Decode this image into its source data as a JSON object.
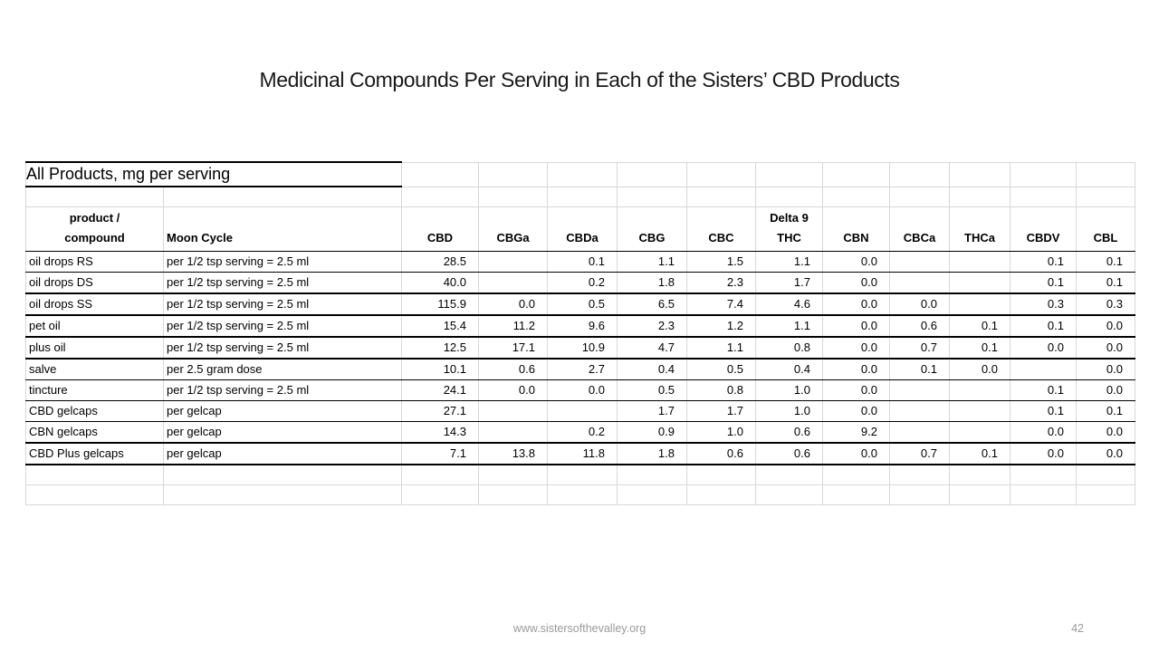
{
  "slide_title": "Medicinal Compounds Per Serving in Each of the Sisters’ CBD Products",
  "footer": {
    "website": "www.sistersofthevalley.org",
    "page_number": "42"
  },
  "chart_data": {
    "type": "table",
    "caption": "All Products, mg per serving",
    "columns": [
      "product /\ncompound",
      "Moon Cycle",
      "CBD",
      "CBGa",
      "CBDa",
      "CBG",
      "CBC",
      "Delta 9\nTHC",
      "CBN",
      "CBCa",
      "THCa",
      "CBDV",
      "CBL"
    ],
    "rows": [
      {
        "product": "oil drops RS",
        "moon_cycle": "per 1/2 tsp serving = 2.5 ml",
        "values": [
          "28.5",
          "",
          "0.1",
          "1.1",
          "1.5",
          "1.1",
          "0.0",
          "",
          "",
          "0.1",
          "0.1"
        ],
        "bottom_border": "thin"
      },
      {
        "product": "oil drops DS",
        "moon_cycle": "per 1/2 tsp serving = 2.5 ml",
        "values": [
          "40.0",
          "",
          "0.2",
          "1.8",
          "2.3",
          "1.7",
          "0.0",
          "",
          "",
          "0.1",
          "0.1"
        ],
        "bottom_border": "thick"
      },
      {
        "product": "oil drops SS",
        "moon_cycle": "per 1/2 tsp serving = 2.5 ml",
        "values": [
          "115.9",
          "0.0",
          "0.5",
          "6.5",
          "7.4",
          "4.6",
          "0.0",
          "0.0",
          "",
          "0.3",
          "0.3"
        ],
        "bottom_border": "thick"
      },
      {
        "product": "pet oil",
        "moon_cycle": "per 1/2 tsp serving = 2.5 ml",
        "values": [
          "15.4",
          "11.2",
          "9.6",
          "2.3",
          "1.2",
          "1.1",
          "0.0",
          "0.6",
          "0.1",
          "0.1",
          "0.0"
        ],
        "bottom_border": "thick"
      },
      {
        "product": "plus oil",
        "moon_cycle": "per 1/2 tsp serving = 2.5 ml",
        "values": [
          "12.5",
          "17.1",
          "10.9",
          "4.7",
          "1.1",
          "0.8",
          "0.0",
          "0.7",
          "0.1",
          "0.0",
          "0.0"
        ],
        "bottom_border": "thick"
      },
      {
        "product": "salve",
        "moon_cycle": "per 2.5 gram dose",
        "values": [
          "10.1",
          "0.6",
          "2.7",
          "0.4",
          "0.5",
          "0.4",
          "0.0",
          "0.1",
          "0.0",
          "",
          "0.0"
        ],
        "bottom_border": "thin"
      },
      {
        "product": "tincture",
        "moon_cycle": "per 1/2 tsp serving = 2.5 ml",
        "values": [
          "24.1",
          "0.0",
          "0.0",
          "0.5",
          "0.8",
          "1.0",
          "0.0",
          "",
          "",
          "0.1",
          "0.0"
        ],
        "bottom_border": "thin"
      },
      {
        "product": "CBD gelcaps",
        "moon_cycle": "per gelcap",
        "values": [
          "27.1",
          "",
          "",
          "1.7",
          "1.7",
          "1.0",
          "0.0",
          "",
          "",
          "0.1",
          "0.1"
        ],
        "bottom_border": "thin"
      },
      {
        "product": "CBN gelcaps",
        "moon_cycle": "per gelcap",
        "values": [
          "14.3",
          "",
          "0.2",
          "0.9",
          "1.0",
          "0.6",
          "9.2",
          "",
          "",
          "0.0",
          "0.0"
        ],
        "bottom_border": "thick"
      },
      {
        "product": "CBD Plus gelcaps",
        "moon_cycle": "per gelcap",
        "values": [
          "7.1",
          "13.8",
          "11.8",
          "1.8",
          "0.6",
          "0.6",
          "0.0",
          "0.7",
          "0.1",
          "0.0",
          "0.0"
        ],
        "bottom_border": "thick"
      }
    ],
    "empty_trailing_rows": 2,
    "grid_color": "#d8d8d8",
    "border_color": "#000000"
  }
}
